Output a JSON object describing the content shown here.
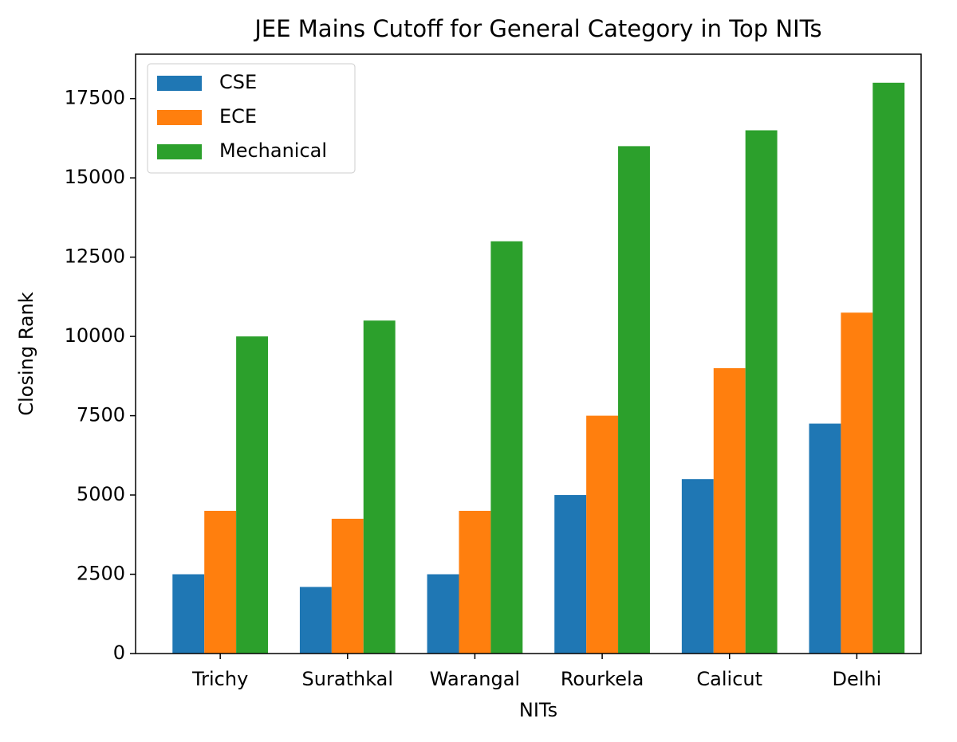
{
  "chart_data": {
    "type": "bar",
    "title": "JEE Mains Cutoff for General Category in Top NITs",
    "x_label": "NITs",
    "y_label": "Closing Rank",
    "categories": [
      "Trichy",
      "Surathkal",
      "Warangal",
      "Rourkela",
      "Calicut",
      "Delhi"
    ],
    "series": [
      {
        "name": "CSE",
        "color": "#1f77b4",
        "values": [
          2500,
          2100,
          2500,
          5000,
          5500,
          7250
        ]
      },
      {
        "name": "ECE",
        "color": "#ff7f0e",
        "values": [
          4500,
          4250,
          4500,
          7500,
          9000,
          10750
        ]
      },
      {
        "name": "Mechanical",
        "color": "#2ca02c",
        "values": [
          10000,
          10500,
          13000,
          16000,
          16500,
          18000
        ]
      }
    ],
    "ylim": [
      0,
      18900
    ],
    "yticks": [
      0,
      2500,
      5000,
      7500,
      10000,
      12500,
      15000,
      17500
    ],
    "grid": false,
    "legend": "upper-left"
  }
}
